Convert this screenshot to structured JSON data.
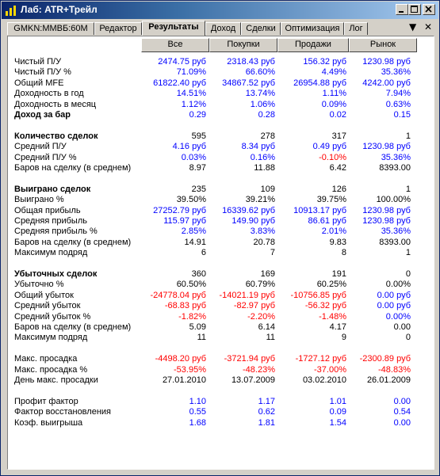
{
  "window": {
    "title": "Лаб: ATR+Трейл"
  },
  "tabs": [
    {
      "label": "GMKN:MMBБ:60M"
    },
    {
      "label": "Редактор"
    },
    {
      "label": "Результаты"
    },
    {
      "label": "Доход"
    },
    {
      "label": "Сделки"
    },
    {
      "label": "Оптимизация"
    },
    {
      "label": "Лог"
    }
  ],
  "tab_controls": {
    "menu": "▼",
    "close": "✕"
  },
  "columns": [
    "Все",
    "Покупки",
    "Продажи",
    "Рынок"
  ],
  "colors": {
    "positive": "#0000ff",
    "negative": "#ff0000",
    "neutral": "#000000",
    "title_bar": "#0a246a"
  },
  "rows": [
    {
      "label": "Чистый П/У",
      "bold": false,
      "values": [
        [
          "2474.75 руб",
          "b"
        ],
        [
          "2318.43 руб",
          "b"
        ],
        [
          "156.32 руб",
          "b"
        ],
        [
          "1230.98 руб",
          "b"
        ]
      ]
    },
    {
      "label": "Чистый П/У %",
      "bold": false,
      "values": [
        [
          "71.09%",
          "b"
        ],
        [
          "66.60%",
          "b"
        ],
        [
          "4.49%",
          "b"
        ],
        [
          "35.36%",
          "b"
        ]
      ]
    },
    {
      "label": "Общий MFE",
      "bold": false,
      "values": [
        [
          "61822.40 руб",
          "b"
        ],
        [
          "34867.52 руб",
          "b"
        ],
        [
          "26954.88 руб",
          "b"
        ],
        [
          "4242.00 руб",
          "b"
        ]
      ]
    },
    {
      "label": "Доходность в год",
      "bold": false,
      "values": [
        [
          "14.51%",
          "b"
        ],
        [
          "13.74%",
          "b"
        ],
        [
          "1.11%",
          "b"
        ],
        [
          "7.94%",
          "b"
        ]
      ]
    },
    {
      "label": "Доходность в месяц",
      "bold": false,
      "values": [
        [
          "1.12%",
          "b"
        ],
        [
          "1.06%",
          "b"
        ],
        [
          "0.09%",
          "b"
        ],
        [
          "0.63%",
          "b"
        ]
      ]
    },
    {
      "label": "Доход за бар",
      "bold": true,
      "values": [
        [
          "0.29",
          "b"
        ],
        [
          "0.28",
          "b"
        ],
        [
          "0.02",
          "b"
        ],
        [
          "0.15",
          "b"
        ]
      ]
    },
    {
      "label": "",
      "bold": false,
      "values": []
    },
    {
      "label": "Количество сделок",
      "bold": true,
      "values": [
        [
          "595",
          "k"
        ],
        [
          "278",
          "k"
        ],
        [
          "317",
          "k"
        ],
        [
          "1",
          "k"
        ]
      ]
    },
    {
      "label": "Средний П/У",
      "bold": false,
      "values": [
        [
          "4.16 руб",
          "b"
        ],
        [
          "8.34 руб",
          "b"
        ],
        [
          "0.49 руб",
          "b"
        ],
        [
          "1230.98 руб",
          "b"
        ]
      ]
    },
    {
      "label": "Средний П/У %",
      "bold": false,
      "values": [
        [
          "0.03%",
          "b"
        ],
        [
          "0.16%",
          "b"
        ],
        [
          "-0.10%",
          "r"
        ],
        [
          "35.36%",
          "b"
        ]
      ]
    },
    {
      "label": "Баров на сделку (в среднем)",
      "bold": false,
      "values": [
        [
          "8.97",
          "k"
        ],
        [
          "11.88",
          "k"
        ],
        [
          "6.42",
          "k"
        ],
        [
          "8393.00",
          "k"
        ]
      ]
    },
    {
      "label": "",
      "bold": false,
      "values": []
    },
    {
      "label": "Выиграно сделок",
      "bold": true,
      "values": [
        [
          "235",
          "k"
        ],
        [
          "109",
          "k"
        ],
        [
          "126",
          "k"
        ],
        [
          "1",
          "k"
        ]
      ]
    },
    {
      "label": "Выиграно %",
      "bold": false,
      "values": [
        [
          "39.50%",
          "k"
        ],
        [
          "39.21%",
          "k"
        ],
        [
          "39.75%",
          "k"
        ],
        [
          "100.00%",
          "k"
        ]
      ]
    },
    {
      "label": "Общая прибыль",
      "bold": false,
      "values": [
        [
          "27252.79 руб",
          "b"
        ],
        [
          "16339.62 руб",
          "b"
        ],
        [
          "10913.17 руб",
          "b"
        ],
        [
          "1230.98 руб",
          "b"
        ]
      ]
    },
    {
      "label": "Средняя прибыль",
      "bold": false,
      "values": [
        [
          "115.97 руб",
          "b"
        ],
        [
          "149.90 руб",
          "b"
        ],
        [
          "86.61 руб",
          "b"
        ],
        [
          "1230.98 руб",
          "b"
        ]
      ]
    },
    {
      "label": "Средняя прибыль %",
      "bold": false,
      "values": [
        [
          "2.85%",
          "b"
        ],
        [
          "3.83%",
          "b"
        ],
        [
          "2.01%",
          "b"
        ],
        [
          "35.36%",
          "b"
        ]
      ]
    },
    {
      "label": "Баров на сделку (в среднем)",
      "bold": false,
      "values": [
        [
          "14.91",
          "k"
        ],
        [
          "20.78",
          "k"
        ],
        [
          "9.83",
          "k"
        ],
        [
          "8393.00",
          "k"
        ]
      ]
    },
    {
      "label": "Максимум подряд",
      "bold": false,
      "values": [
        [
          "6",
          "k"
        ],
        [
          "7",
          "k"
        ],
        [
          "8",
          "k"
        ],
        [
          "1",
          "k"
        ]
      ]
    },
    {
      "label": "",
      "bold": false,
      "values": []
    },
    {
      "label": "Убыточных сделок",
      "bold": true,
      "values": [
        [
          "360",
          "k"
        ],
        [
          "169",
          "k"
        ],
        [
          "191",
          "k"
        ],
        [
          "0",
          "k"
        ]
      ]
    },
    {
      "label": "Убыточно %",
      "bold": false,
      "values": [
        [
          "60.50%",
          "k"
        ],
        [
          "60.79%",
          "k"
        ],
        [
          "60.25%",
          "k"
        ],
        [
          "0.00%",
          "k"
        ]
      ]
    },
    {
      "label": "Общий убыток",
      "bold": false,
      "values": [
        [
          "-24778.04 руб",
          "r"
        ],
        [
          "-14021.19 руб",
          "r"
        ],
        [
          "-10756.85 руб",
          "r"
        ],
        [
          "0.00 руб",
          "b"
        ]
      ]
    },
    {
      "label": "Средний убыток",
      "bold": false,
      "values": [
        [
          "-68.83 руб",
          "r"
        ],
        [
          "-82.97 руб",
          "r"
        ],
        [
          "-56.32 руб",
          "r"
        ],
        [
          "0.00 руб",
          "b"
        ]
      ]
    },
    {
      "label": "Средний убыток %",
      "bold": false,
      "values": [
        [
          "-1.82%",
          "r"
        ],
        [
          "-2.20%",
          "r"
        ],
        [
          "-1.48%",
          "r"
        ],
        [
          "0.00%",
          "b"
        ]
      ]
    },
    {
      "label": "Баров на сделку (в среднем)",
      "bold": false,
      "values": [
        [
          "5.09",
          "k"
        ],
        [
          "6.14",
          "k"
        ],
        [
          "4.17",
          "k"
        ],
        [
          "0.00",
          "k"
        ]
      ]
    },
    {
      "label": "Максимум подряд",
      "bold": false,
      "values": [
        [
          "11",
          "k"
        ],
        [
          "11",
          "k"
        ],
        [
          "9",
          "k"
        ],
        [
          "0",
          "k"
        ]
      ]
    },
    {
      "label": "",
      "bold": false,
      "values": []
    },
    {
      "label": "Макс. просадка",
      "bold": false,
      "values": [
        [
          "-4498.20 руб",
          "r"
        ],
        [
          "-3721.94 руб",
          "r"
        ],
        [
          "-1727.12 руб",
          "r"
        ],
        [
          "-2300.89 руб",
          "r"
        ]
      ]
    },
    {
      "label": "Макс. просадка %",
      "bold": false,
      "values": [
        [
          "-53.95%",
          "r"
        ],
        [
          "-48.23%",
          "r"
        ],
        [
          "-37.00%",
          "r"
        ],
        [
          "-48.83%",
          "r"
        ]
      ]
    },
    {
      "label": "День макс. просадки",
      "bold": false,
      "values": [
        [
          "27.01.2010",
          "k"
        ],
        [
          "13.07.2009",
          "k"
        ],
        [
          "03.02.2010",
          "k"
        ],
        [
          "26.01.2009",
          "k"
        ]
      ]
    },
    {
      "label": "",
      "bold": false,
      "values": []
    },
    {
      "label": "Профит фактор",
      "bold": false,
      "values": [
        [
          "1.10",
          "b"
        ],
        [
          "1.17",
          "b"
        ],
        [
          "1.01",
          "b"
        ],
        [
          "0.00",
          "b"
        ]
      ]
    },
    {
      "label": "Фактор восстановления",
      "bold": false,
      "values": [
        [
          "0.55",
          "b"
        ],
        [
          "0.62",
          "b"
        ],
        [
          "0.09",
          "b"
        ],
        [
          "0.54",
          "b"
        ]
      ]
    },
    {
      "label": "Коэф. выигрыша",
      "bold": false,
      "values": [
        [
          "1.68",
          "b"
        ],
        [
          "1.81",
          "b"
        ],
        [
          "1.54",
          "b"
        ],
        [
          "0.00",
          "b"
        ]
      ]
    }
  ]
}
